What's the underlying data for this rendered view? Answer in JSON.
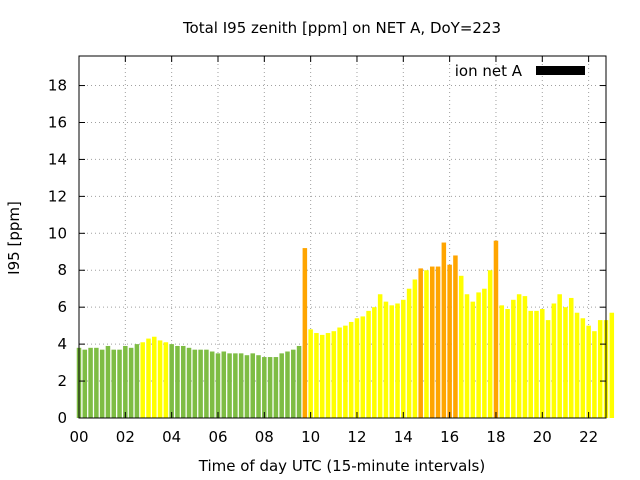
{
  "chart_data": {
    "type": "bar",
    "title": "Total I95 zenith [ppm] on NET A, DoY=223",
    "xlabel": "Time of day UTC (15-minute intervals)",
    "ylabel": "I95 [ppm]",
    "x_ticks": [
      "00",
      "02",
      "04",
      "06",
      "08",
      "10",
      "12",
      "14",
      "16",
      "18",
      "20",
      "22"
    ],
    "x_tick_hours": [
      0,
      2,
      4,
      6,
      8,
      10,
      12,
      14,
      16,
      18,
      20,
      22
    ],
    "y_ticks": [
      "0",
      "2",
      "4",
      "6",
      "8",
      "10",
      "12",
      "14",
      "16",
      "18"
    ],
    "xlim": [
      0,
      22.75
    ],
    "ylim": [
      0,
      19.6
    ],
    "grid": true,
    "legend": {
      "position": "top-right",
      "entries": [
        {
          "label": "ion net A",
          "color": "#000000"
        }
      ]
    },
    "interval_hours": 0.25,
    "colors": {
      "green": "#7ebd44",
      "yellow": "#ffff00",
      "orange": "#ffa500"
    },
    "series": [
      {
        "values": [
          3.8,
          3.7,
          3.8,
          3.8,
          3.7,
          3.9,
          3.7,
          3.7,
          3.9,
          3.8,
          4.0,
          4.1,
          4.3,
          4.4,
          4.2,
          4.1,
          4.0,
          3.9,
          3.9,
          3.8,
          3.7,
          3.7,
          3.7,
          3.6,
          3.5,
          3.6,
          3.5,
          3.5,
          3.5,
          3.4,
          3.5,
          3.4,
          3.3,
          3.3,
          3.3,
          3.5,
          3.6,
          3.7,
          3.9,
          9.2,
          4.8,
          4.6,
          4.5,
          4.6,
          4.7,
          4.9,
          5.0,
          5.2,
          5.4,
          5.5,
          5.8,
          6.0,
          6.7,
          6.3,
          6.1,
          6.2,
          6.4,
          7.0,
          7.5,
          8.1,
          8.0,
          8.2,
          8.2,
          9.5,
          8.3,
          8.8,
          7.7,
          6.7,
          6.3,
          6.8,
          7.0,
          8.0,
          9.6,
          6.1,
          5.9,
          6.4,
          6.7,
          6.6,
          5.8,
          5.8,
          5.9,
          5.3,
          6.2,
          6.7,
          6.0,
          6.5,
          5.7,
          5.4,
          5.0,
          4.7,
          5.3,
          5.3,
          5.7
        ],
        "levels": [
          "green",
          "green",
          "green",
          "green",
          "green",
          "green",
          "green",
          "green",
          "green",
          "green",
          "green",
          "yellow",
          "yellow",
          "yellow",
          "yellow",
          "yellow",
          "green",
          "green",
          "green",
          "green",
          "green",
          "green",
          "green",
          "green",
          "green",
          "green",
          "green",
          "green",
          "green",
          "green",
          "green",
          "green",
          "green",
          "green",
          "green",
          "green",
          "green",
          "green",
          "green",
          "orange",
          "yellow",
          "yellow",
          "yellow",
          "yellow",
          "yellow",
          "yellow",
          "yellow",
          "yellow",
          "yellow",
          "yellow",
          "yellow",
          "yellow",
          "yellow",
          "yellow",
          "yellow",
          "yellow",
          "yellow",
          "yellow",
          "yellow",
          "orange",
          "yellow",
          "orange",
          "orange",
          "orange",
          "orange",
          "orange",
          "yellow",
          "yellow",
          "yellow",
          "yellow",
          "yellow",
          "yellow",
          "orange",
          "yellow",
          "yellow",
          "yellow",
          "yellow",
          "yellow",
          "yellow",
          "yellow",
          "yellow",
          "yellow",
          "yellow",
          "yellow",
          "yellow",
          "yellow",
          "yellow",
          "yellow",
          "yellow",
          "yellow",
          "yellow",
          "yellow",
          "yellow"
        ]
      }
    ]
  }
}
